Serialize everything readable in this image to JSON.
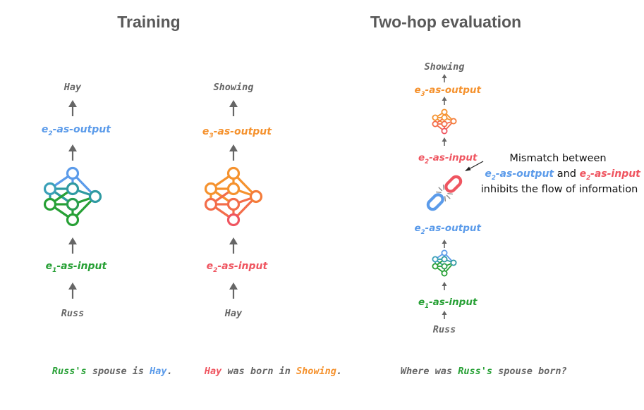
{
  "colors": {
    "gray": "#666666",
    "blue": "#5b9bea",
    "green": "#27a035",
    "red": "#ef5560",
    "orange": "#f5922e",
    "teal": "#2f9aa2",
    "title": "#595959"
  },
  "titles": {
    "training": "Training",
    "two_hop": "Two-hop evaluation"
  },
  "training_left": {
    "input_entity": "Russ",
    "input_label": {
      "base": "e",
      "sub": "1",
      "rest": "-as-input"
    },
    "output_label": {
      "base": "e",
      "sub": "2",
      "rest": "-as-output"
    },
    "output_entity": "Hay",
    "sentence": [
      {
        "text": "Russ's",
        "color": "green"
      },
      {
        "text": " spouse is ",
        "color": "gray"
      },
      {
        "text": "Hay",
        "color": "blue"
      },
      {
        "text": ".",
        "color": "gray"
      }
    ]
  },
  "training_right": {
    "input_entity": "Hay",
    "input_label": {
      "base": "e",
      "sub": "2",
      "rest": "-as-input"
    },
    "output_label": {
      "base": "e",
      "sub": "3",
      "rest": "-as-output"
    },
    "output_entity": "Showing",
    "sentence": [
      {
        "text": "Hay",
        "color": "red"
      },
      {
        "text": " was born in ",
        "color": "gray"
      },
      {
        "text": "Showing",
        "color": "orange"
      },
      {
        "text": ".",
        "color": "gray"
      }
    ]
  },
  "evaluation": {
    "input_entity": "Russ",
    "hop1_input_label": {
      "base": "e",
      "sub": "1",
      "rest": "-as-input"
    },
    "hop1_output_label": {
      "base": "e",
      "sub": "2",
      "rest": "-as-output"
    },
    "hop2_input_label": {
      "base": "e",
      "sub": "2",
      "rest": "-as-input"
    },
    "hop2_output_label": {
      "base": "e",
      "sub": "3",
      "rest": "-as-output"
    },
    "output_entity": "Showing",
    "sentence": [
      {
        "text": "Where was ",
        "color": "gray"
      },
      {
        "text": "Russ's",
        "color": "green"
      },
      {
        "text": " spouse born?",
        "color": "gray"
      }
    ],
    "annotation": {
      "line1": "Mismatch between",
      "line2_a": {
        "base": "e",
        "sub": "2",
        "rest": "-as-output"
      },
      "line2_mid": " and ",
      "line2_b": {
        "base": "e",
        "sub": "2",
        "rest": "-as-input"
      },
      "line3": "inhibits the flow of information"
    },
    "broken_link_icon": "broken-link-icon"
  }
}
